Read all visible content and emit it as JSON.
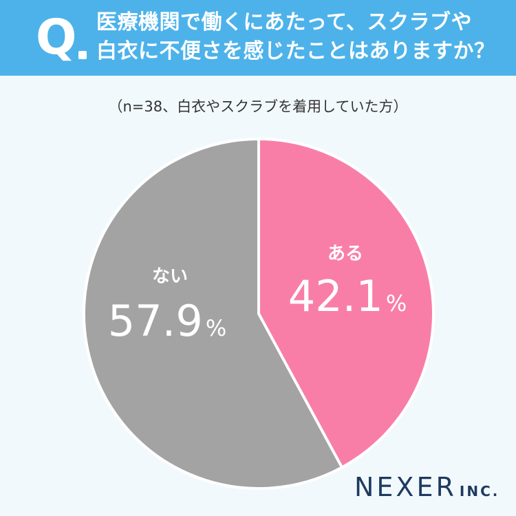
{
  "header": {
    "q_mark": "Q",
    "question_line1": "医療機関で働くにあたって、スクラブや",
    "question_line2": "白衣に不便さを感じたことはありますか？"
  },
  "note": "（n=38、白衣やスクラブを着用していた方）",
  "chart_data": {
    "type": "pie",
    "title": "医療機関で働くにあたって、スクラブや白衣に不便さを感じたことはありますか？",
    "slices": [
      {
        "label": "ある",
        "value": 42.1,
        "value_text": "42.1",
        "unit": "%",
        "color": "#f87ea8"
      },
      {
        "label": "ない",
        "value": 57.9,
        "value_text": "57.9",
        "unit": "%",
        "color": "#a3a3a3"
      }
    ]
  },
  "logo": {
    "main": "NEXER",
    "sub": "INC."
  }
}
